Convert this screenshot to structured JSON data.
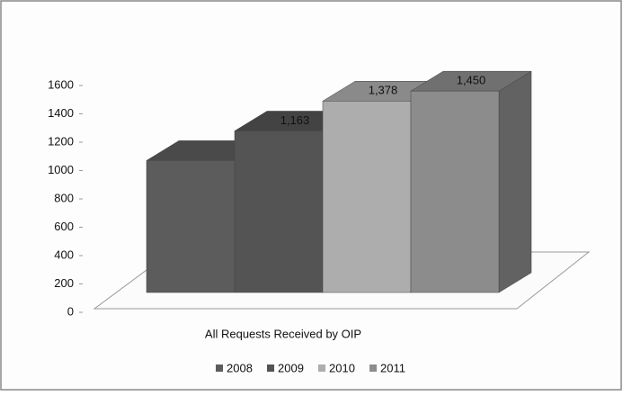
{
  "chart_data": {
    "type": "bar3d",
    "categories": [
      "All Requests Received by OIP"
    ],
    "series": [
      {
        "name": "2008",
        "color": "#5c5c5c",
        "values": [
          950
        ]
      },
      {
        "name": "2009",
        "color": "#545454",
        "values": [
          1163
        ],
        "value_labels": [
          "1,163"
        ]
      },
      {
        "name": "2010",
        "color": "#adadad",
        "values": [
          1378
        ],
        "value_labels": [
          "1,378"
        ]
      },
      {
        "name": "2011",
        "color": "#8c8c8c",
        "values": [
          1450
        ],
        "value_labels": [
          "1,450"
        ]
      }
    ],
    "ylim": [
      0,
      1600
    ],
    "yticks": [
      0,
      200,
      400,
      600,
      800,
      1000,
      1200,
      1400,
      1600
    ]
  }
}
